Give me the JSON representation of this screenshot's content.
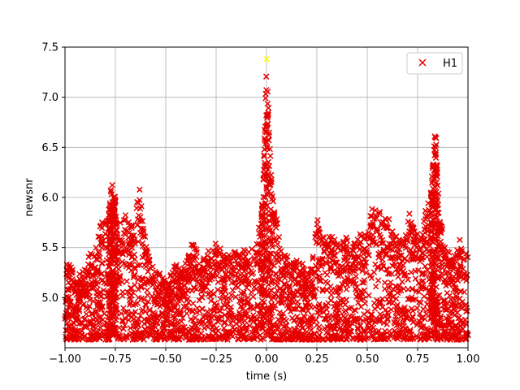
{
  "chart_data": {
    "type": "scatter",
    "xlabel": "time (s)",
    "ylabel": "newsnr",
    "xlim": [
      -1.0,
      1.0
    ],
    "ylim": [
      4.5,
      7.5
    ],
    "xticks": [
      "−1.00",
      "−0.75",
      "−0.50",
      "−0.25",
      "0.00",
      "0.25",
      "0.50",
      "0.75",
      "1.00"
    ],
    "yticks": [
      "5.0",
      "5.5",
      "6.0",
      "6.5",
      "7.0",
      "7.5"
    ],
    "grid": true,
    "legend_placement": "top-right",
    "marker": "x",
    "series": [
      {
        "name": "H1",
        "color": "#e60000",
        "envelope": [
          [
            -1.0,
            5.3
          ],
          [
            -0.98,
            5.42
          ],
          [
            -0.95,
            5.2
          ],
          [
            -0.92,
            5.25
          ],
          [
            -0.9,
            5.3
          ],
          [
            -0.87,
            5.5
          ],
          [
            -0.85,
            5.45
          ],
          [
            -0.82,
            5.82
          ],
          [
            -0.8,
            5.75
          ],
          [
            -0.78,
            5.9
          ],
          [
            -0.77,
            6.15
          ],
          [
            -0.76,
            6.1
          ],
          [
            -0.74,
            5.9
          ],
          [
            -0.72,
            5.7
          ],
          [
            -0.7,
            5.86
          ],
          [
            -0.68,
            5.8
          ],
          [
            -0.66,
            5.7
          ],
          [
            -0.64,
            6.05
          ],
          [
            -0.63,
            6.1
          ],
          [
            -0.61,
            5.7
          ],
          [
            -0.58,
            5.4
          ],
          [
            -0.55,
            5.25
          ],
          [
            -0.52,
            5.3
          ],
          [
            -0.5,
            5.1
          ],
          [
            -0.47,
            5.25
          ],
          [
            -0.45,
            5.35
          ],
          [
            -0.42,
            5.28
          ],
          [
            -0.4,
            5.42
          ],
          [
            -0.37,
            5.55
          ],
          [
            -0.35,
            5.5
          ],
          [
            -0.32,
            5.4
          ],
          [
            -0.3,
            5.45
          ],
          [
            -0.27,
            5.55
          ],
          [
            -0.25,
            5.6
          ],
          [
            -0.22,
            5.45
          ],
          [
            -0.2,
            5.4
          ],
          [
            -0.18,
            5.5
          ],
          [
            -0.15,
            5.45
          ],
          [
            -0.12,
            5.6
          ],
          [
            -0.1,
            5.4
          ],
          [
            -0.08,
            5.55
          ],
          [
            -0.05,
            5.6
          ],
          [
            -0.03,
            5.78
          ],
          [
            -0.02,
            6.0
          ],
          [
            -0.01,
            6.6
          ],
          [
            0.0,
            7.38
          ],
          [
            0.01,
            6.9
          ],
          [
            0.02,
            6.4
          ],
          [
            0.03,
            6.0
          ],
          [
            0.05,
            5.8
          ],
          [
            0.08,
            5.4
          ],
          [
            0.1,
            5.45
          ],
          [
            0.12,
            5.35
          ],
          [
            0.15,
            5.4
          ],
          [
            0.18,
            5.35
          ],
          [
            0.2,
            5.25
          ],
          [
            0.22,
            5.3
          ],
          [
            0.25,
            5.82
          ],
          [
            0.27,
            5.6
          ],
          [
            0.3,
            5.65
          ],
          [
            0.33,
            5.6
          ],
          [
            0.35,
            5.55
          ],
          [
            0.38,
            5.6
          ],
          [
            0.4,
            5.65
          ],
          [
            0.42,
            5.5
          ],
          [
            0.45,
            5.6
          ],
          [
            0.47,
            5.65
          ],
          [
            0.5,
            5.7
          ],
          [
            0.52,
            5.9
          ],
          [
            0.54,
            5.88
          ],
          [
            0.56,
            5.88
          ],
          [
            0.58,
            5.75
          ],
          [
            0.6,
            5.85
          ],
          [
            0.62,
            5.7
          ],
          [
            0.65,
            5.6
          ],
          [
            0.68,
            5.6
          ],
          [
            0.7,
            5.8
          ],
          [
            0.71,
            5.85
          ],
          [
            0.73,
            5.7
          ],
          [
            0.75,
            5.75
          ],
          [
            0.77,
            5.6
          ],
          [
            0.79,
            5.9
          ],
          [
            0.81,
            6.0
          ],
          [
            0.82,
            6.2
          ],
          [
            0.83,
            6.5
          ],
          [
            0.84,
            6.75
          ],
          [
            0.85,
            6.2
          ],
          [
            0.86,
            5.85
          ],
          [
            0.88,
            5.6
          ],
          [
            0.9,
            5.5
          ],
          [
            0.92,
            5.4
          ],
          [
            0.94,
            5.45
          ],
          [
            0.96,
            5.6
          ],
          [
            0.98,
            5.4
          ],
          [
            1.0,
            5.5
          ]
        ]
      }
    ],
    "highlight": {
      "x": 0.0,
      "y": 7.38,
      "color": "#ffff00"
    }
  }
}
